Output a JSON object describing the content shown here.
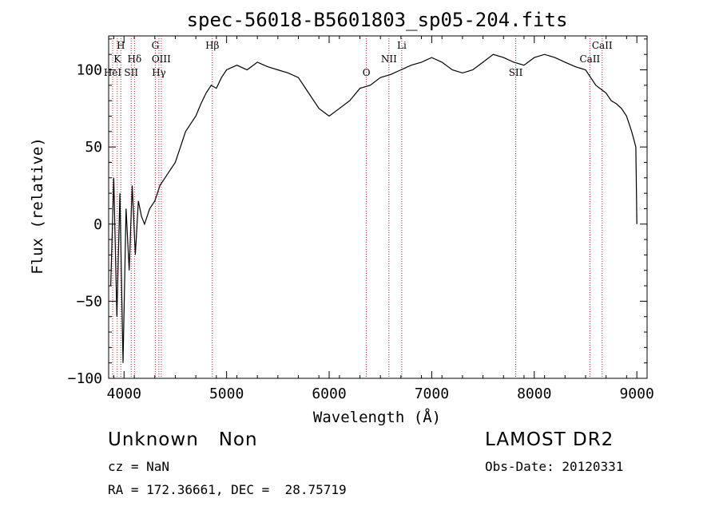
{
  "chart_data": {
    "type": "line",
    "title": "spec-56018-B5601803_sp05-204.fits",
    "xlabel": "Wavelength (Å)",
    "ylabel": "Flux (relative)",
    "xlim": [
      3850,
      9100
    ],
    "ylim": [
      -100,
      122
    ],
    "xticks": [
      4000,
      5000,
      6000,
      7000,
      8000,
      9000
    ],
    "xtick_labels": [
      "4000",
      "5000",
      "6000",
      "7000",
      "8000",
      "9000"
    ],
    "yticks": [
      -100,
      -50,
      0,
      50,
      100
    ],
    "ytick_labels": [
      "−100",
      "−50",
      "0",
      "50",
      "100"
    ],
    "grid": false,
    "legend": "none",
    "series": [
      {
        "x": [
          3870,
          3900,
          3930,
          3960,
          3990,
          4020,
          4050,
          4080,
          4110,
          4140,
          4170,
          4200,
          4250,
          4300,
          4350,
          4400,
          4450,
          4500,
          4550,
          4600,
          4650,
          4700,
          4750,
          4800,
          4850,
          4900,
          4950,
          5000,
          5100,
          5200,
          5300,
          5400,
          5500,
          5600,
          5700,
          5800,
          5900,
          6000,
          6100,
          6200,
          6300,
          6400,
          6500,
          6600,
          6700,
          6800,
          6900,
          7000,
          7100,
          7200,
          7300,
          7400,
          7500,
          7600,
          7700,
          7800,
          7900,
          8000,
          8100,
          8200,
          8300,
          8400,
          8500,
          8600,
          8700,
          8750,
          8800,
          8850,
          8900,
          8950,
          8990,
          9000
        ],
        "y": [
          -40,
          30,
          -60,
          20,
          -90,
          10,
          -30,
          25,
          -20,
          15,
          5,
          0,
          10,
          15,
          25,
          30,
          35,
          40,
          50,
          60,
          65,
          70,
          78,
          85,
          90,
          88,
          95,
          100,
          103,
          100,
          105,
          102,
          100,
          98,
          95,
          85,
          75,
          70,
          75,
          80,
          88,
          90,
          95,
          97,
          100,
          103,
          105,
          108,
          105,
          100,
          98,
          100,
          105,
          110,
          108,
          105,
          103,
          108,
          110,
          108,
          105,
          102,
          100,
          90,
          85,
          80,
          78,
          75,
          70,
          60,
          50,
          0
        ]
      }
    ],
    "annotations": [
      "H",
      "K",
      "HeI",
      "SII",
      "Hδ",
      "G",
      "OIII",
      "Hγ",
      "Hβ",
      "O",
      "NII",
      "Li",
      "SII",
      "CaII",
      "CaII"
    ]
  },
  "lines": [
    {
      "x": 3889,
      "label": "HeI",
      "row": 3
    },
    {
      "x": 3934,
      "label": "K",
      "row": 2
    },
    {
      "x": 3969,
      "label": "H",
      "row": 1
    },
    {
      "x": 4070,
      "label": "SII",
      "row": 3
    },
    {
      "x": 4102,
      "label": "Hδ",
      "row": 2
    },
    {
      "x": 4305,
      "label": "G",
      "row": 1
    },
    {
      "x": 4340,
      "label": "Hγ",
      "row": 3
    },
    {
      "x": 4363,
      "label": "OIII",
      "row": 2
    },
    {
      "x": 4861,
      "label": "Hβ",
      "row": 1
    },
    {
      "x": 6363,
      "label": "O",
      "row": 3
    },
    {
      "x": 6583,
      "label": "NII",
      "row": 2
    },
    {
      "x": 6708,
      "label": "Li",
      "row": 1
    },
    {
      "x": 7819,
      "label": "SII",
      "row": 3
    },
    {
      "x": 8542,
      "label": "CaII",
      "row": 2
    },
    {
      "x": 8662,
      "label": "CaII",
      "row": 1
    }
  ],
  "footer": {
    "class_text": "Unknown   Non",
    "survey": "LAMOST DR2",
    "cz": "cz = NaN",
    "obs_date": "Obs-Date: 20120331",
    "radec": "RA = 172.36661, DEC =  28.75719"
  }
}
